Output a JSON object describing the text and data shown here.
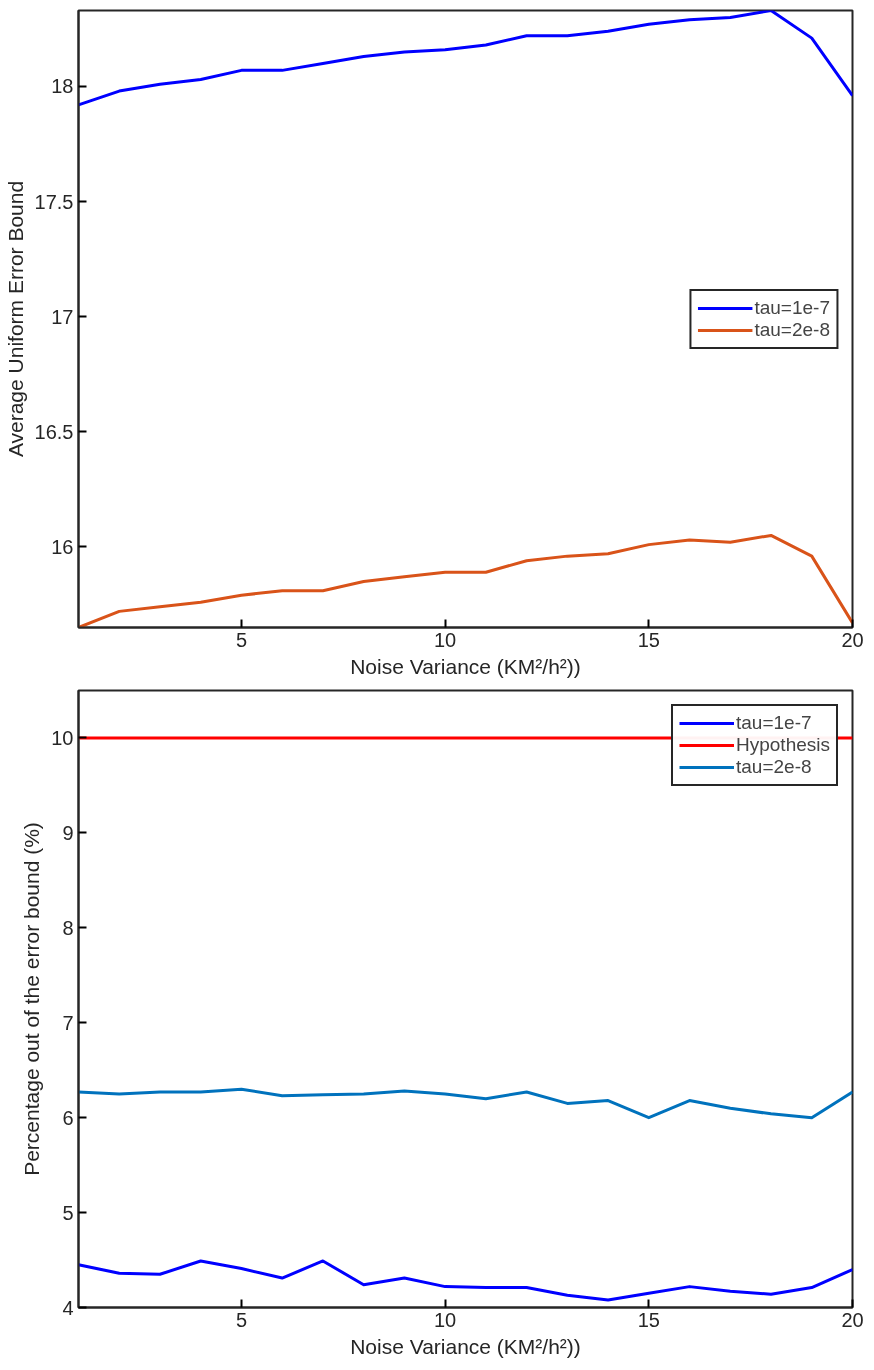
{
  "chart_data": [
    {
      "type": "line",
      "xlabel": "Noise Variance (KM²/h²))",
      "ylabel": "Average Uniform Error Bound",
      "x": [
        1,
        2,
        3,
        4,
        5,
        6,
        7,
        8,
        9,
        10,
        11,
        12,
        13,
        14,
        15,
        16,
        17,
        18,
        19,
        20
      ],
      "xlim": [
        1,
        20
      ],
      "xticks": [
        5,
        10,
        15,
        20
      ],
      "ylim": [
        15.65,
        18.33
      ],
      "yticks": [
        16,
        16.5,
        17,
        17.5,
        18
      ],
      "grid": false,
      "legend": "right",
      "series": [
        {
          "name": "tau=1e-7",
          "color": "#0000ff",
          "values": [
            17.92,
            17.98,
            18.01,
            18.03,
            18.07,
            18.07,
            18.1,
            18.13,
            18.15,
            18.16,
            18.18,
            18.22,
            18.22,
            18.24,
            18.27,
            18.29,
            18.3,
            18.33,
            18.21,
            17.96
          ]
        },
        {
          "name": "tau=2e-8",
          "color": "#d95319",
          "values": [
            15.65,
            15.72,
            15.74,
            15.76,
            15.79,
            15.81,
            15.81,
            15.85,
            15.87,
            15.89,
            15.89,
            15.94,
            15.96,
            15.97,
            16.01,
            16.03,
            16.02,
            16.05,
            15.96,
            15.67
          ]
        }
      ]
    },
    {
      "type": "line",
      "xlabel": "Noise Variance (KM²/h²))",
      "ylabel": "Percentage out of the error bound (%)",
      "x": [
        1,
        2,
        3,
        4,
        5,
        6,
        7,
        8,
        9,
        10,
        11,
        12,
        13,
        14,
        15,
        16,
        17,
        18,
        19,
        20
      ],
      "xlim": [
        1,
        20
      ],
      "xticks": [
        5,
        10,
        15,
        20
      ],
      "ylim": [
        4,
        10.5
      ],
      "yticks": [
        4,
        5,
        6,
        7,
        8,
        9,
        10
      ],
      "grid": false,
      "legend": "top right",
      "series": [
        {
          "name": "tau=1e-7",
          "color": "#0000ff",
          "values": [
            4.45,
            4.36,
            4.35,
            4.49,
            4.41,
            4.31,
            4.49,
            4.24,
            4.31,
            4.22,
            4.21,
            4.21,
            4.13,
            4.08,
            4.15,
            4.22,
            4.17,
            4.14,
            4.21,
            4.4
          ]
        },
        {
          "name": "Hypothesis",
          "color": "#ff0000",
          "x": [
            1,
            20
          ],
          "values": [
            10,
            10
          ]
        },
        {
          "name": "tau=2e-8",
          "color": "#0072bd",
          "values": [
            6.27,
            6.25,
            6.27,
            6.27,
            6.3,
            6.23,
            6.24,
            6.25,
            6.28,
            6.25,
            6.2,
            6.27,
            6.15,
            6.18,
            6.0,
            6.18,
            6.1,
            6.04,
            6.0,
            6.27
          ]
        }
      ]
    }
  ]
}
